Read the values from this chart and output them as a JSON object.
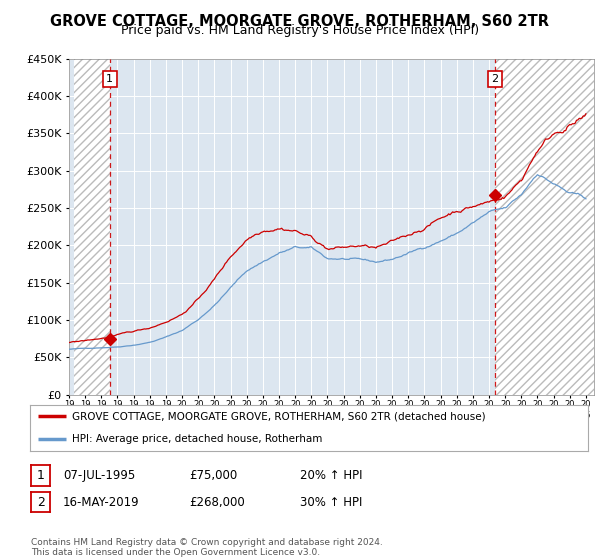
{
  "title": "GROVE COTTAGE, MOORGATE GROVE, ROTHERHAM, S60 2TR",
  "subtitle": "Price paid vs. HM Land Registry's House Price Index (HPI)",
  "title_fontsize": 10.5,
  "subtitle_fontsize": 9,
  "ylabel_ticks": [
    "£0",
    "£50K",
    "£100K",
    "£150K",
    "£200K",
    "£250K",
    "£300K",
    "£350K",
    "£400K",
    "£450K"
  ],
  "ytick_values": [
    0,
    50000,
    100000,
    150000,
    200000,
    250000,
    300000,
    350000,
    400000,
    450000
  ],
  "ylim": [
    0,
    450000
  ],
  "xlim_start": 1993.3,
  "xlim_end": 2025.5,
  "xtick_years": [
    1993,
    1994,
    1995,
    1996,
    1997,
    1998,
    1999,
    2000,
    2001,
    2002,
    2003,
    2004,
    2005,
    2006,
    2007,
    2008,
    2009,
    2010,
    2011,
    2012,
    2013,
    2014,
    2015,
    2016,
    2017,
    2018,
    2019,
    2020,
    2021,
    2022,
    2023,
    2024,
    2025
  ],
  "background_color": "#ffffff",
  "plot_bg_color": "#dce6f0",
  "grid_color": "#ffffff",
  "red_line_color": "#cc0000",
  "blue_line_color": "#6699cc",
  "dashed_marker_color": "#cc0000",
  "marker1_x": 1995.52,
  "marker1_y": 75000,
  "marker2_x": 2019.37,
  "marker2_y": 268000,
  "legend_line1": "GROVE COTTAGE, MOORGATE GROVE, ROTHERHAM, S60 2TR (detached house)",
  "legend_line2": "HPI: Average price, detached house, Rotherham",
  "table_row1": [
    "1",
    "07-JUL-1995",
    "£75,000",
    "20% ↑ HPI"
  ],
  "table_row2": [
    "2",
    "16-MAY-2019",
    "£268,000",
    "30% ↑ HPI"
  ],
  "footnote": "Contains HM Land Registry data © Crown copyright and database right 2024.\nThis data is licensed under the Open Government Licence v3.0."
}
